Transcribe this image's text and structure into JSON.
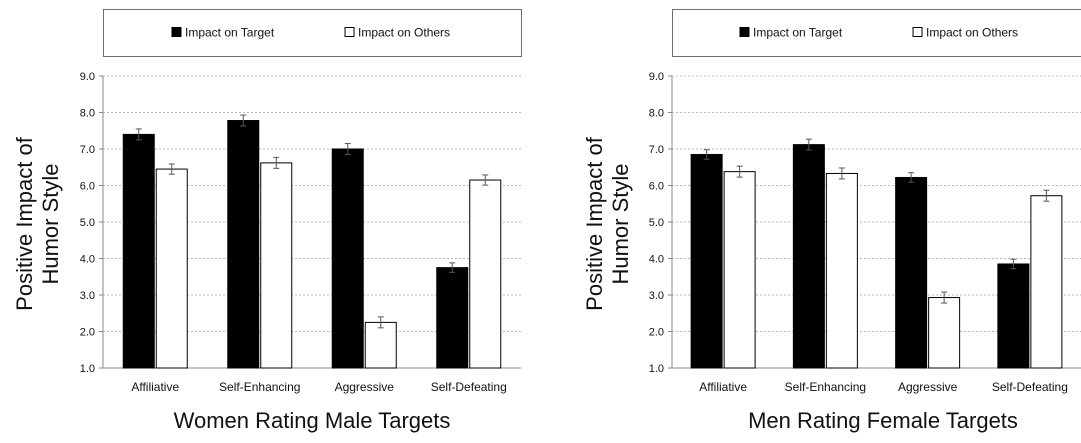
{
  "chart_data": [
    {
      "type": "bar",
      "title": "Women Rating Male Targets",
      "ylabel": "Positive Impact of Humor Style",
      "ylabel_lines": [
        "Positive Impact of",
        "Humor Style"
      ],
      "xlabel": "",
      "ylim": [
        1.0,
        9.0
      ],
      "yticks": [
        "1.0",
        "2.0",
        "3.0",
        "4.0",
        "5.0",
        "6.0",
        "7.0",
        "8.0",
        "9.0"
      ],
      "grid": true,
      "legend_position": "top",
      "categories": [
        "Affiliative",
        "Self-Enhancing",
        "Aggressive",
        "Self-Defeating"
      ],
      "series": [
        {
          "name": "Impact on Target",
          "color": "#000000",
          "values": [
            7.4,
            7.78,
            7.0,
            3.75
          ],
          "errors": [
            0.15,
            0.15,
            0.15,
            0.13
          ]
        },
        {
          "name": "Impact on Others",
          "color": "#ffffff",
          "values": [
            6.45,
            6.62,
            2.25,
            6.15
          ],
          "errors": [
            0.14,
            0.15,
            0.15,
            0.14
          ]
        }
      ]
    },
    {
      "type": "bar",
      "title": "Men Rating Female Targets",
      "ylabel": "Positive Impact of Humor Style",
      "ylabel_lines": [
        "Positive Impact of",
        "Humor Style"
      ],
      "xlabel": "",
      "ylim": [
        1.0,
        9.0
      ],
      "yticks": [
        "1.0",
        "2.0",
        "3.0",
        "4.0",
        "5.0",
        "6.0",
        "7.0",
        "8.0",
        "9.0"
      ],
      "grid": true,
      "legend_position": "top",
      "categories": [
        "Affiliative",
        "Self-Enhancing",
        "Aggressive",
        "Self-Defeating"
      ],
      "series": [
        {
          "name": "Impact on Target",
          "color": "#000000",
          "values": [
            6.85,
            7.12,
            6.22,
            3.85
          ],
          "errors": [
            0.13,
            0.15,
            0.13,
            0.13
          ]
        },
        {
          "name": "Impact on Others",
          "color": "#ffffff",
          "values": [
            6.38,
            6.33,
            2.93,
            5.72
          ],
          "errors": [
            0.15,
            0.15,
            0.15,
            0.15
          ]
        }
      ]
    }
  ]
}
